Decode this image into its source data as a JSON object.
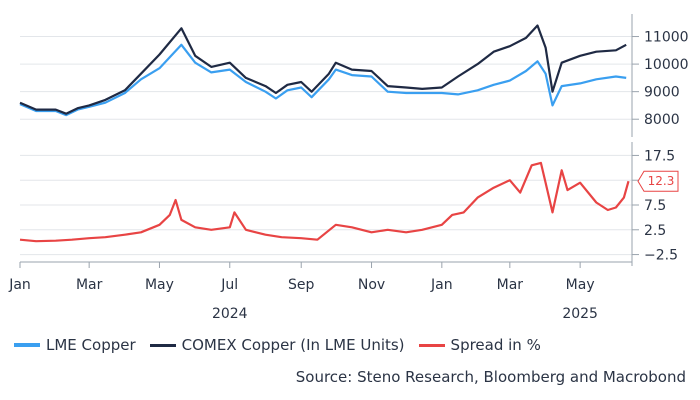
{
  "chart_data": {
    "type": "line",
    "title": "",
    "x_tick_labels": [
      {
        "month": "Jan",
        "year": "2024"
      },
      {
        "month": "Mar",
        "year": ""
      },
      {
        "month": "May",
        "year": ""
      },
      {
        "month": "Jul",
        "year": "2024"
      },
      {
        "month": "Sep",
        "year": ""
      },
      {
        "month": "Nov",
        "year": ""
      },
      {
        "month": "Jan",
        "year": ""
      },
      {
        "month": "Mar",
        "year": ""
      },
      {
        "month": "May",
        "year": "2025"
      }
    ],
    "x_tick_dates": [
      "2024-01-01",
      "2024-03-01",
      "2024-05-01",
      "2024-07-01",
      "2024-09-01",
      "2024-11-01",
      "2025-01-01",
      "2025-03-01",
      "2025-05-01"
    ],
    "x_range": [
      "2024-01-01",
      "2025-06-15"
    ],
    "panels": [
      {
        "id": "price",
        "ylim": [
          7500,
          11600
        ],
        "yticks": [
          8000,
          9000,
          10000,
          11000
        ],
        "series": [
          {
            "name": "LME Copper",
            "color": "#3a9ff0",
            "x": [
              "2024-01-01",
              "2024-01-15",
              "2024-02-01",
              "2024-02-10",
              "2024-02-20",
              "2024-03-01",
              "2024-03-15",
              "2024-04-01",
              "2024-04-15",
              "2024-05-01",
              "2024-05-20",
              "2024-06-01",
              "2024-06-15",
              "2024-07-01",
              "2024-07-15",
              "2024-08-01",
              "2024-08-10",
              "2024-08-20",
              "2024-09-01",
              "2024-09-10",
              "2024-09-25",
              "2024-10-01",
              "2024-10-15",
              "2024-11-01",
              "2024-11-15",
              "2024-12-01",
              "2024-12-15",
              "2025-01-01",
              "2025-01-15",
              "2025-02-01",
              "2025-02-15",
              "2025-03-01",
              "2025-03-15",
              "2025-03-25",
              "2025-04-01",
              "2025-04-07",
              "2025-04-15",
              "2025-05-01",
              "2025-05-15",
              "2025-06-01",
              "2025-06-10"
            ],
            "y": [
              8550,
              8300,
              8300,
              8150,
              8350,
              8450,
              8600,
              8950,
              9450,
              9850,
              10700,
              10050,
              9700,
              9800,
              9350,
              9000,
              8750,
              9050,
              9150,
              8800,
              9450,
              9800,
              9600,
              9550,
              9000,
              8950,
              8950,
              8950,
              8900,
              9050,
              9250,
              9400,
              9750,
              10100,
              9650,
              8500,
              9200,
              9300,
              9450,
              9550,
              9500
            ]
          },
          {
            "name": "COMEX Copper (In LME Units)",
            "color": "#1f2a44",
            "x": [
              "2024-01-01",
              "2024-01-15",
              "2024-02-01",
              "2024-02-10",
              "2024-02-20",
              "2024-03-01",
              "2024-03-15",
              "2024-04-01",
              "2024-04-15",
              "2024-05-01",
              "2024-05-20",
              "2024-06-01",
              "2024-06-15",
              "2024-07-01",
              "2024-07-15",
              "2024-08-01",
              "2024-08-10",
              "2024-08-20",
              "2024-09-01",
              "2024-09-10",
              "2024-09-25",
              "2024-10-01",
              "2024-10-15",
              "2024-11-01",
              "2024-11-15",
              "2024-12-01",
              "2024-12-15",
              "2025-01-01",
              "2025-01-15",
              "2025-02-01",
              "2025-02-15",
              "2025-03-01",
              "2025-03-15",
              "2025-03-25",
              "2025-04-01",
              "2025-04-07",
              "2025-04-15",
              "2025-05-01",
              "2025-05-15",
              "2025-06-01",
              "2025-06-10"
            ],
            "y": [
              8600,
              8350,
              8350,
              8200,
              8400,
              8500,
              8700,
              9050,
              9650,
              10350,
              11300,
              10300,
              9900,
              10050,
              9500,
              9200,
              8950,
              9250,
              9350,
              9000,
              9650,
              10050,
              9800,
              9750,
              9200,
              9150,
              9100,
              9150,
              9550,
              10000,
              10450,
              10650,
              10950,
              11400,
              10600,
              9000,
              10050,
              10300,
              10450,
              10500,
              10700
            ]
          }
        ]
      },
      {
        "id": "spread",
        "ylim": [
          -4,
          19
        ],
        "yticks": [
          -2.5,
          2.5,
          7.5,
          12.5,
          17.5
        ],
        "series": [
          {
            "name": "Spread in %",
            "color": "#e84444",
            "x": [
              "2024-01-01",
              "2024-01-15",
              "2024-02-01",
              "2024-02-15",
              "2024-03-01",
              "2024-03-15",
              "2024-04-01",
              "2024-04-15",
              "2024-05-01",
              "2024-05-10",
              "2024-05-15",
              "2024-05-20",
              "2024-06-01",
              "2024-06-15",
              "2024-07-01",
              "2024-07-05",
              "2024-07-15",
              "2024-08-01",
              "2024-08-15",
              "2024-09-01",
              "2024-09-15",
              "2024-10-01",
              "2024-10-15",
              "2024-11-01",
              "2024-11-15",
              "2024-12-01",
              "2024-12-15",
              "2025-01-01",
              "2025-01-10",
              "2025-01-20",
              "2025-02-01",
              "2025-02-15",
              "2025-03-01",
              "2025-03-10",
              "2025-03-20",
              "2025-03-28",
              "2025-04-01",
              "2025-04-07",
              "2025-04-15",
              "2025-04-20",
              "2025-05-01",
              "2025-05-15",
              "2025-05-25",
              "2025-06-01",
              "2025-06-08",
              "2025-06-12"
            ],
            "y": [
              0.5,
              0.2,
              0.3,
              0.5,
              0.8,
              1.0,
              1.5,
              2.0,
              3.5,
              5.5,
              8.5,
              4.5,
              3.0,
              2.5,
              3.0,
              6.0,
              2.5,
              1.5,
              1.0,
              0.8,
              0.5,
              3.5,
              3.0,
              2.0,
              2.5,
              2.0,
              2.5,
              3.5,
              5.5,
              6.0,
              9.0,
              11.0,
              12.5,
              10.0,
              15.5,
              16.0,
              12.0,
              6.0,
              14.5,
              10.5,
              12.0,
              8.0,
              6.5,
              7.0,
              9.0,
              12.3
            ]
          }
        ]
      }
    ],
    "end_label": {
      "series": "Spread in %",
      "text": "12.3",
      "value": 12.3
    },
    "legend": {
      "placement": "bottom-left",
      "items": [
        {
          "label": "LME Copper",
          "color": "#3a9ff0"
        },
        {
          "label": "COMEX Copper (In LME Units)",
          "color": "#1f2a44"
        },
        {
          "label": "Spread in %",
          "color": "#e84444"
        }
      ]
    },
    "source": "Source: Steno Research, Bloomberg and Macrobond",
    "grid": true
  }
}
